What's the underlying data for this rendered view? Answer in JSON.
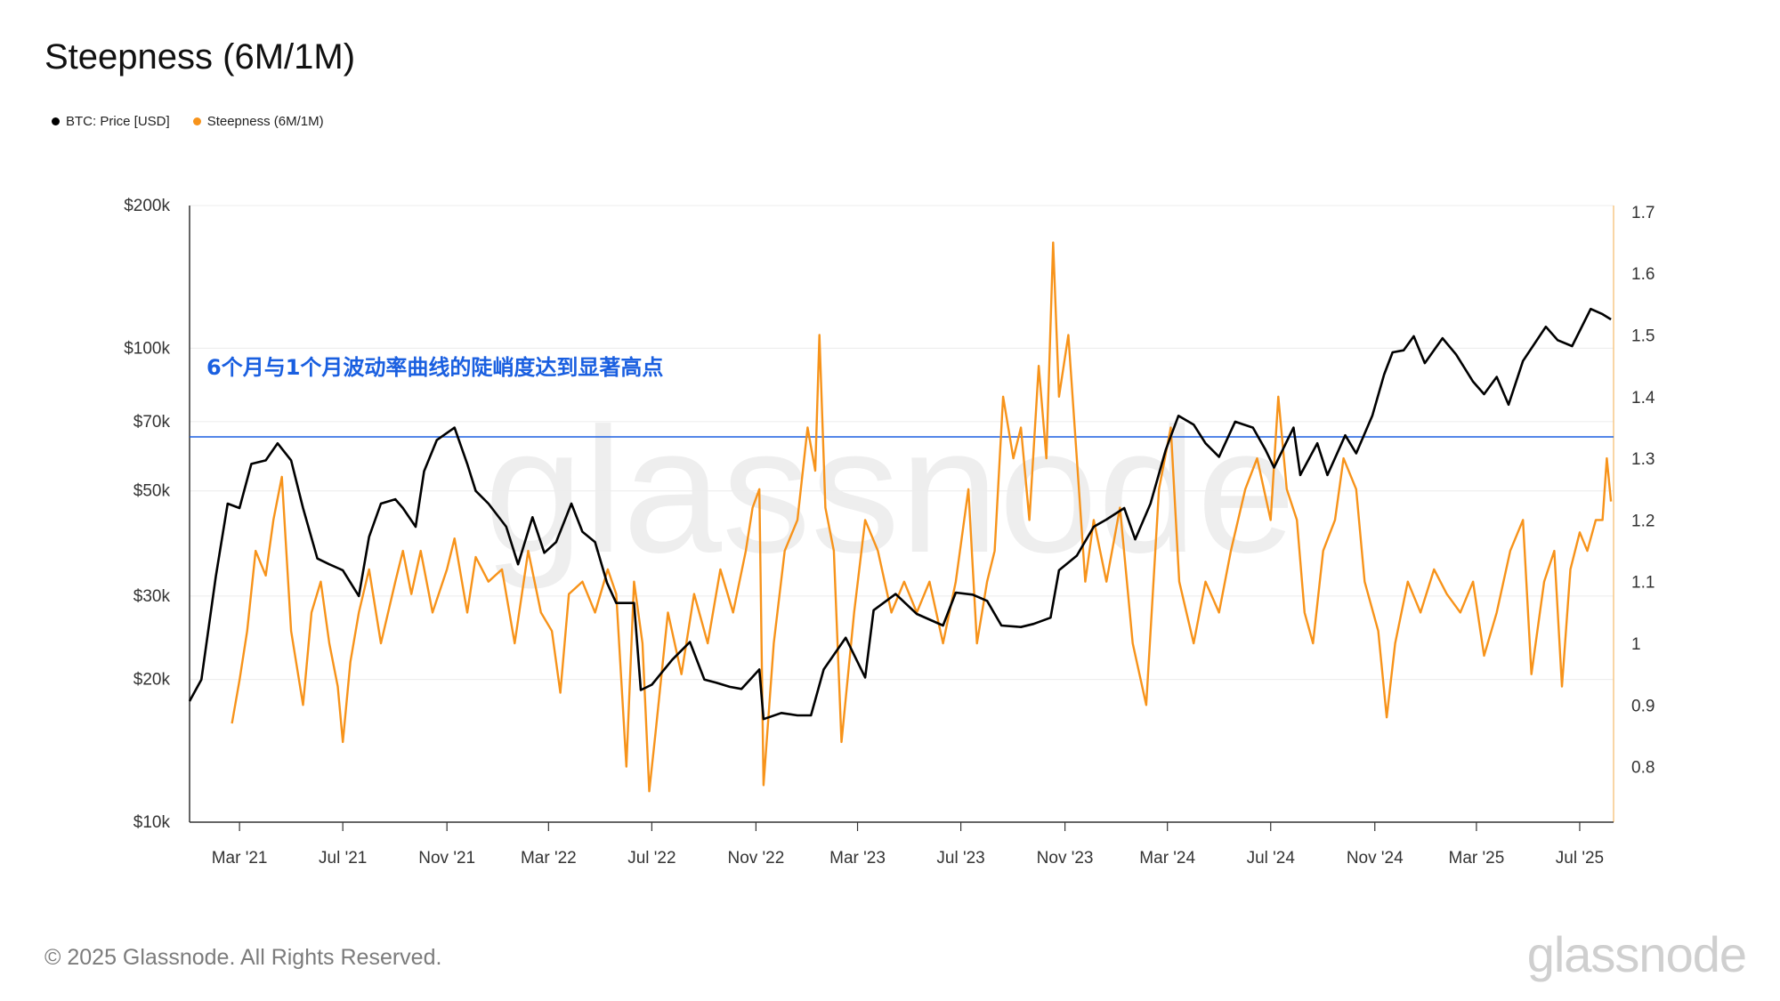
{
  "title": "Steepness (6M/1M)",
  "legend": [
    {
      "label": "BTC: Price [USD]",
      "color": "#000000"
    },
    {
      "label": "Steepness (6M/1M)",
      "color": "#f7931a"
    }
  ],
  "footer": {
    "copyright": "© 2025 Glassnode. All Rights Reserved.",
    "logo": "glassnode"
  },
  "chart_data": {
    "type": "line",
    "title": "Steepness (6M/1M)",
    "annotation": "6个月与1个月波动率曲线的陡峭度达到显著高点",
    "x_ticks": [
      "Mar '21",
      "Jul '21",
      "Nov '21",
      "Mar '22",
      "Jul '22",
      "Nov '22",
      "Mar '23",
      "Jul '23",
      "Nov '23",
      "Mar '24",
      "Jul '24",
      "Nov '24",
      "Mar '25",
      "Jul '25"
    ],
    "y_left": {
      "scale": "log",
      "ticks": [
        10000,
        20000,
        30000,
        50000,
        70000,
        100000,
        200000
      ],
      "tick_labels": [
        "$10k",
        "$20k",
        "$30k",
        "$50k",
        "$70k",
        "$100k",
        "$200k"
      ],
      "lim": [
        10000,
        200000
      ]
    },
    "y_right": {
      "ticks": [
        0.8,
        0.9,
        1,
        1.1,
        1.2,
        1.3,
        1.4,
        1.5,
        1.6,
        1.7
      ],
      "tick_labels": [
        "0.8",
        "0.9",
        "1",
        "1.1",
        "1.2",
        "1.3",
        "1.4",
        "1.5",
        "1.6",
        "1.7"
      ],
      "lim": [
        0.71,
        1.71
      ]
    },
    "reference_line": {
      "axis": "left",
      "value": 65000,
      "color": "#1a5fe0"
    },
    "series": [
      {
        "name": "BTC: Price [USD]",
        "axis": "left",
        "color": "#000000",
        "points": [
          [
            "2021-01-01",
            18000
          ],
          [
            "2021-01-15",
            20000
          ],
          [
            "2021-02-01",
            33000
          ],
          [
            "2021-02-15",
            47000
          ],
          [
            "2021-03-01",
            46000
          ],
          [
            "2021-03-15",
            57000
          ],
          [
            "2021-04-01",
            58000
          ],
          [
            "2021-04-15",
            63000
          ],
          [
            "2021-05-01",
            58000
          ],
          [
            "2021-05-15",
            46000
          ],
          [
            "2021-06-01",
            36000
          ],
          [
            "2021-06-15",
            35000
          ],
          [
            "2021-07-01",
            34000
          ],
          [
            "2021-07-20",
            30000
          ],
          [
            "2021-08-01",
            40000
          ],
          [
            "2021-08-15",
            47000
          ],
          [
            "2021-09-01",
            48000
          ],
          [
            "2021-09-10",
            46000
          ],
          [
            "2021-09-25",
            42000
          ],
          [
            "2021-10-05",
            55000
          ],
          [
            "2021-10-20",
            64000
          ],
          [
            "2021-11-10",
            68000
          ],
          [
            "2021-11-25",
            57000
          ],
          [
            "2021-12-05",
            50000
          ],
          [
            "2021-12-20",
            47000
          ],
          [
            "2022-01-10",
            42000
          ],
          [
            "2022-01-24",
            35000
          ],
          [
            "2022-02-10",
            44000
          ],
          [
            "2022-02-24",
            37000
          ],
          [
            "2022-03-10",
            39000
          ],
          [
            "2022-03-28",
            47000
          ],
          [
            "2022-04-10",
            41000
          ],
          [
            "2022-04-25",
            39000
          ],
          [
            "2022-05-09",
            32000
          ],
          [
            "2022-05-20",
            29000
          ],
          [
            "2022-06-10",
            29000
          ],
          [
            "2022-06-18",
            19000
          ],
          [
            "2022-07-01",
            19500
          ],
          [
            "2022-07-25",
            22000
          ],
          [
            "2022-08-15",
            24000
          ],
          [
            "2022-09-01",
            20000
          ],
          [
            "2022-09-15",
            19700
          ],
          [
            "2022-10-01",
            19300
          ],
          [
            "2022-10-15",
            19100
          ],
          [
            "2022-11-05",
            21000
          ],
          [
            "2022-11-10",
            16500
          ],
          [
            "2022-12-01",
            17000
          ],
          [
            "2022-12-20",
            16800
          ],
          [
            "2023-01-05",
            16800
          ],
          [
            "2023-01-20",
            21000
          ],
          [
            "2023-02-15",
            24500
          ],
          [
            "2023-03-10",
            20200
          ],
          [
            "2023-03-20",
            28000
          ],
          [
            "2023-04-15",
            30300
          ],
          [
            "2023-05-10",
            27500
          ],
          [
            "2023-06-10",
            26000
          ],
          [
            "2023-06-25",
            30500
          ],
          [
            "2023-07-15",
            30200
          ],
          [
            "2023-08-01",
            29300
          ],
          [
            "2023-08-18",
            26000
          ],
          [
            "2023-09-10",
            25800
          ],
          [
            "2023-09-25",
            26200
          ],
          [
            "2023-10-15",
            27000
          ],
          [
            "2023-10-25",
            34000
          ],
          [
            "2023-11-15",
            36500
          ],
          [
            "2023-12-05",
            42000
          ],
          [
            "2023-12-20",
            43500
          ],
          [
            "2024-01-10",
            46000
          ],
          [
            "2024-01-23",
            39500
          ],
          [
            "2024-02-10",
            47000
          ],
          [
            "2024-02-28",
            61000
          ],
          [
            "2024-03-14",
            72000
          ],
          [
            "2024-04-01",
            69000
          ],
          [
            "2024-04-15",
            63000
          ],
          [
            "2024-05-01",
            59000
          ],
          [
            "2024-05-20",
            70000
          ],
          [
            "2024-06-10",
            68000
          ],
          [
            "2024-06-25",
            61000
          ],
          [
            "2024-07-05",
            56000
          ],
          [
            "2024-07-28",
            68000
          ],
          [
            "2024-08-05",
            54000
          ],
          [
            "2024-08-25",
            63000
          ],
          [
            "2024-09-06",
            54000
          ],
          [
            "2024-09-27",
            65500
          ],
          [
            "2024-10-10",
            60000
          ],
          [
            "2024-10-29",
            72000
          ],
          [
            "2024-11-12",
            88000
          ],
          [
            "2024-11-22",
            98000
          ],
          [
            "2024-12-05",
            99000
          ],
          [
            "2024-12-17",
            106000
          ],
          [
            "2024-12-30",
            93000
          ],
          [
            "2025-01-20",
            105000
          ],
          [
            "2025-02-05",
            97000
          ],
          [
            "2025-02-25",
            85000
          ],
          [
            "2025-03-10",
            80000
          ],
          [
            "2025-03-25",
            87000
          ],
          [
            "2025-04-08",
            76000
          ],
          [
            "2025-04-25",
            94000
          ],
          [
            "2025-05-22",
            111000
          ],
          [
            "2025-06-05",
            104000
          ],
          [
            "2025-06-22",
            101000
          ],
          [
            "2025-07-14",
            121000
          ],
          [
            "2025-07-28",
            118000
          ],
          [
            "2025-08-07",
            115000
          ]
        ]
      },
      {
        "name": "Steepness (6M/1M)",
        "axis": "right",
        "color": "#f7931a",
        "points": [
          [
            "2021-02-20",
            0.87
          ],
          [
            "2021-03-01",
            0.94
          ],
          [
            "2021-03-10",
            1.02
          ],
          [
            "2021-03-20",
            1.15
          ],
          [
            "2021-04-01",
            1.11
          ],
          [
            "2021-04-10",
            1.2
          ],
          [
            "2021-04-20",
            1.27
          ],
          [
            "2021-05-01",
            1.02
          ],
          [
            "2021-05-15",
            0.9
          ],
          [
            "2021-05-25",
            1.05
          ],
          [
            "2021-06-05",
            1.1
          ],
          [
            "2021-06-15",
            1.0
          ],
          [
            "2021-06-25",
            0.93
          ],
          [
            "2021-07-01",
            0.84
          ],
          [
            "2021-07-10",
            0.97
          ],
          [
            "2021-07-20",
            1.05
          ],
          [
            "2021-08-01",
            1.12
          ],
          [
            "2021-08-15",
            1.0
          ],
          [
            "2021-09-01",
            1.1
          ],
          [
            "2021-09-10",
            1.15
          ],
          [
            "2021-09-20",
            1.08
          ],
          [
            "2021-10-01",
            1.15
          ],
          [
            "2021-10-15",
            1.05
          ],
          [
            "2021-11-01",
            1.12
          ],
          [
            "2021-11-10",
            1.17
          ],
          [
            "2021-11-25",
            1.05
          ],
          [
            "2021-12-05",
            1.14
          ],
          [
            "2021-12-20",
            1.1
          ],
          [
            "2022-01-05",
            1.12
          ],
          [
            "2022-01-20",
            1.0
          ],
          [
            "2022-02-05",
            1.15
          ],
          [
            "2022-02-20",
            1.05
          ],
          [
            "2022-03-05",
            1.02
          ],
          [
            "2022-03-15",
            0.92
          ],
          [
            "2022-03-25",
            1.08
          ],
          [
            "2022-04-10",
            1.1
          ],
          [
            "2022-04-25",
            1.05
          ],
          [
            "2022-05-10",
            1.12
          ],
          [
            "2022-05-20",
            1.08
          ],
          [
            "2022-06-01",
            0.8
          ],
          [
            "2022-06-10",
            1.1
          ],
          [
            "2022-06-20",
            1.0
          ],
          [
            "2022-06-28",
            0.76
          ],
          [
            "2022-07-05",
            0.85
          ],
          [
            "2022-07-20",
            1.05
          ],
          [
            "2022-08-05",
            0.95
          ],
          [
            "2022-08-20",
            1.08
          ],
          [
            "2022-09-05",
            1.0
          ],
          [
            "2022-09-20",
            1.12
          ],
          [
            "2022-10-05",
            1.05
          ],
          [
            "2022-10-20",
            1.15
          ],
          [
            "2022-10-28",
            1.22
          ],
          [
            "2022-11-05",
            1.25
          ],
          [
            "2022-11-10",
            0.77
          ],
          [
            "2022-11-22",
            1.0
          ],
          [
            "2022-12-05",
            1.15
          ],
          [
            "2022-12-20",
            1.2
          ],
          [
            "2023-01-01",
            1.35
          ],
          [
            "2023-01-10",
            1.28
          ],
          [
            "2023-01-15",
            1.5
          ],
          [
            "2023-01-22",
            1.22
          ],
          [
            "2023-02-01",
            1.15
          ],
          [
            "2023-02-10",
            0.84
          ],
          [
            "2023-02-25",
            1.05
          ],
          [
            "2023-03-10",
            1.2
          ],
          [
            "2023-03-25",
            1.15
          ],
          [
            "2023-04-10",
            1.05
          ],
          [
            "2023-04-25",
            1.1
          ],
          [
            "2023-05-10",
            1.05
          ],
          [
            "2023-05-25",
            1.1
          ],
          [
            "2023-06-10",
            1.0
          ],
          [
            "2023-06-25",
            1.1
          ],
          [
            "2023-07-10",
            1.25
          ],
          [
            "2023-07-20",
            1.0
          ],
          [
            "2023-08-01",
            1.1
          ],
          [
            "2023-08-10",
            1.15
          ],
          [
            "2023-08-20",
            1.4
          ],
          [
            "2023-09-01",
            1.3
          ],
          [
            "2023-09-10",
            1.35
          ],
          [
            "2023-09-20",
            1.2
          ],
          [
            "2023-10-01",
            1.45
          ],
          [
            "2023-10-10",
            1.3
          ],
          [
            "2023-10-18",
            1.65
          ],
          [
            "2023-10-25",
            1.4
          ],
          [
            "2023-11-05",
            1.5
          ],
          [
            "2023-11-15",
            1.3
          ],
          [
            "2023-11-25",
            1.1
          ],
          [
            "2023-12-05",
            1.2
          ],
          [
            "2023-12-20",
            1.1
          ],
          [
            "2024-01-05",
            1.22
          ],
          [
            "2024-01-20",
            1.0
          ],
          [
            "2024-02-05",
            0.9
          ],
          [
            "2024-02-20",
            1.25
          ],
          [
            "2024-03-05",
            1.35
          ],
          [
            "2024-03-15",
            1.1
          ],
          [
            "2024-04-01",
            1.0
          ],
          [
            "2024-04-15",
            1.1
          ],
          [
            "2024-05-01",
            1.05
          ],
          [
            "2024-05-15",
            1.15
          ],
          [
            "2024-06-01",
            1.25
          ],
          [
            "2024-06-15",
            1.3
          ],
          [
            "2024-07-01",
            1.2
          ],
          [
            "2024-07-10",
            1.4
          ],
          [
            "2024-07-20",
            1.25
          ],
          [
            "2024-08-01",
            1.2
          ],
          [
            "2024-08-10",
            1.05
          ],
          [
            "2024-08-20",
            1.0
          ],
          [
            "2024-09-01",
            1.15
          ],
          [
            "2024-09-15",
            1.2
          ],
          [
            "2024-09-25",
            1.3
          ],
          [
            "2024-10-10",
            1.25
          ],
          [
            "2024-10-20",
            1.1
          ],
          [
            "2024-11-05",
            1.02
          ],
          [
            "2024-11-15",
            0.88
          ],
          [
            "2024-11-25",
            1.0
          ],
          [
            "2024-12-10",
            1.1
          ],
          [
            "2024-12-25",
            1.05
          ],
          [
            "2025-01-10",
            1.12
          ],
          [
            "2025-01-25",
            1.08
          ],
          [
            "2025-02-10",
            1.05
          ],
          [
            "2025-02-25",
            1.1
          ],
          [
            "2025-03-10",
            0.98
          ],
          [
            "2025-03-25",
            1.05
          ],
          [
            "2025-04-10",
            1.15
          ],
          [
            "2025-04-25",
            1.2
          ],
          [
            "2025-05-05",
            0.95
          ],
          [
            "2025-05-20",
            1.1
          ],
          [
            "2025-06-01",
            1.15
          ],
          [
            "2025-06-10",
            0.93
          ],
          [
            "2025-06-20",
            1.12
          ],
          [
            "2025-07-01",
            1.18
          ],
          [
            "2025-07-10",
            1.15
          ],
          [
            "2025-07-20",
            1.2
          ],
          [
            "2025-07-28",
            1.2
          ],
          [
            "2025-08-02",
            1.3
          ],
          [
            "2025-08-07",
            1.23
          ]
        ]
      }
    ],
    "grid": true
  }
}
